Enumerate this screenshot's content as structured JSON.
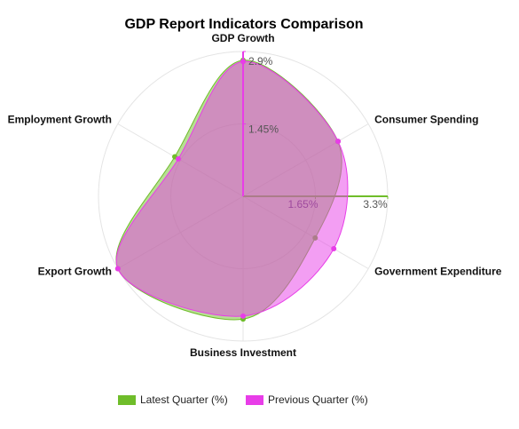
{
  "chart_data": {
    "type": "radar",
    "title": "GDP Report Indicators Comparison",
    "indicators": [
      "GDP Growth",
      "Consumer Spending",
      "Government Expenditure",
      "Business Investment",
      "Export Growth",
      "Employment Growth"
    ],
    "series": [
      {
        "name": "Latest Quarter (%)",
        "color": "#6fbd2a",
        "values": [
          3.1,
          2.5,
          1.9,
          2.8,
          3.3,
          1.8
        ],
        "rlim": [
          0,
          3.3
        ],
        "rticks": [
          {
            "value": 1.65,
            "label": "1.65%"
          },
          {
            "value": 3.3,
            "label": "3.3%"
          }
        ]
      },
      {
        "name": "Previous Quarter (%)",
        "color": "#e83de8",
        "values": [
          2.7,
          2.2,
          2.1,
          2.4,
          2.9,
          1.5
        ],
        "rlim": [
          0,
          2.9
        ],
        "rticks": [
          {
            "value": 1.45,
            "label": "1.45%"
          },
          {
            "value": 2.9,
            "label": "2.9%"
          }
        ]
      }
    ],
    "legend": "bottom"
  }
}
